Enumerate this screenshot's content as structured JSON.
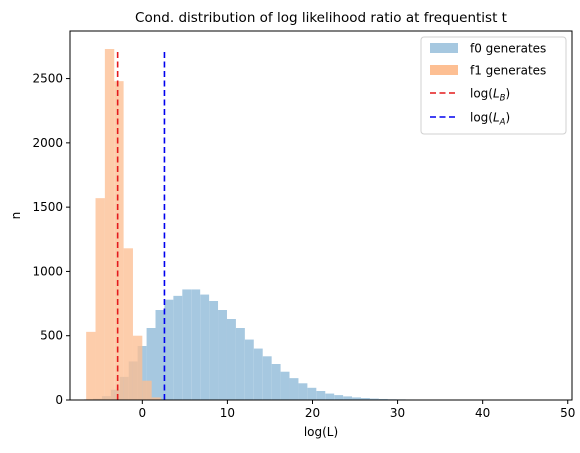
{
  "chart_data": {
    "type": "histogram",
    "title": "Cond. distribution of log likelihood ratio at frequentist  t",
    "xlabel": "log(L)",
    "ylabel": "n",
    "xlim": [
      -8.5,
      50.5
    ],
    "ylim": [
      0,
      2870
    ],
    "xticks": [
      0,
      10,
      20,
      30,
      40,
      50
    ],
    "yticks": [
      0,
      500,
      1000,
      1500,
      2000,
      2500
    ],
    "grid": false,
    "legend_placement": "top-right",
    "series": [
      {
        "name": "f0 generates",
        "color": "#a6c8e0",
        "bin_edges": [
          -6.85,
          -5.8,
          -4.75,
          -3.7,
          -2.65,
          -1.6,
          -0.55,
          0.5,
          1.55,
          2.6,
          3.65,
          4.7,
          5.75,
          6.8,
          7.85,
          8.9,
          9.95,
          11.0,
          12.05,
          13.1,
          14.15,
          15.2,
          16.25,
          17.3,
          18.35,
          19.4,
          20.45,
          21.5,
          22.55,
          23.6,
          24.65,
          25.7,
          26.75,
          27.8,
          28.85,
          29.9,
          30.95,
          32.0,
          33.05,
          34.1,
          35.15,
          36.2,
          37.25,
          38.3,
          39.35,
          40.4,
          41.45,
          42.5,
          43.55,
          44.6,
          45.65,
          46.7,
          47.75,
          48.8
        ],
        "counts": [
          5,
          10,
          30,
          80,
          180,
          300,
          420,
          560,
          700,
          780,
          810,
          860,
          860,
          820,
          770,
          700,
          630,
          560,
          470,
          400,
          340,
          280,
          220,
          170,
          130,
          95,
          70,
          50,
          38,
          28,
          20,
          15,
          11,
          8,
          6,
          5,
          4,
          3,
          2,
          2,
          1,
          1,
          1,
          1,
          1,
          0,
          0,
          0,
          0,
          0,
          0,
          0,
          1
        ]
      },
      {
        "name": "f1 generates",
        "color": "#fdbf93",
        "bin_edges": [
          -6.6,
          -5.5,
          -4.4,
          -3.3,
          -2.2,
          -1.1,
          0.0,
          1.1,
          2.2
        ],
        "counts": [
          530,
          1570,
          2730,
          2480,
          1180,
          500,
          150,
          20
        ]
      }
    ],
    "vlines": [
      {
        "name": "log(L_B)",
        "label_main": "log(",
        "label_sym": "L",
        "label_sub": "B",
        "label_end": ")",
        "x": -2.9,
        "ymax": 2720,
        "color": "#e41a1c"
      },
      {
        "name": "log(L_A)",
        "label_main": "log(",
        "label_sym": "L",
        "label_sub": "A",
        "label_end": ")",
        "x": 2.6,
        "ymax": 2720,
        "color": "#0000ee"
      }
    ],
    "overlap_color": "#c8a48a"
  }
}
